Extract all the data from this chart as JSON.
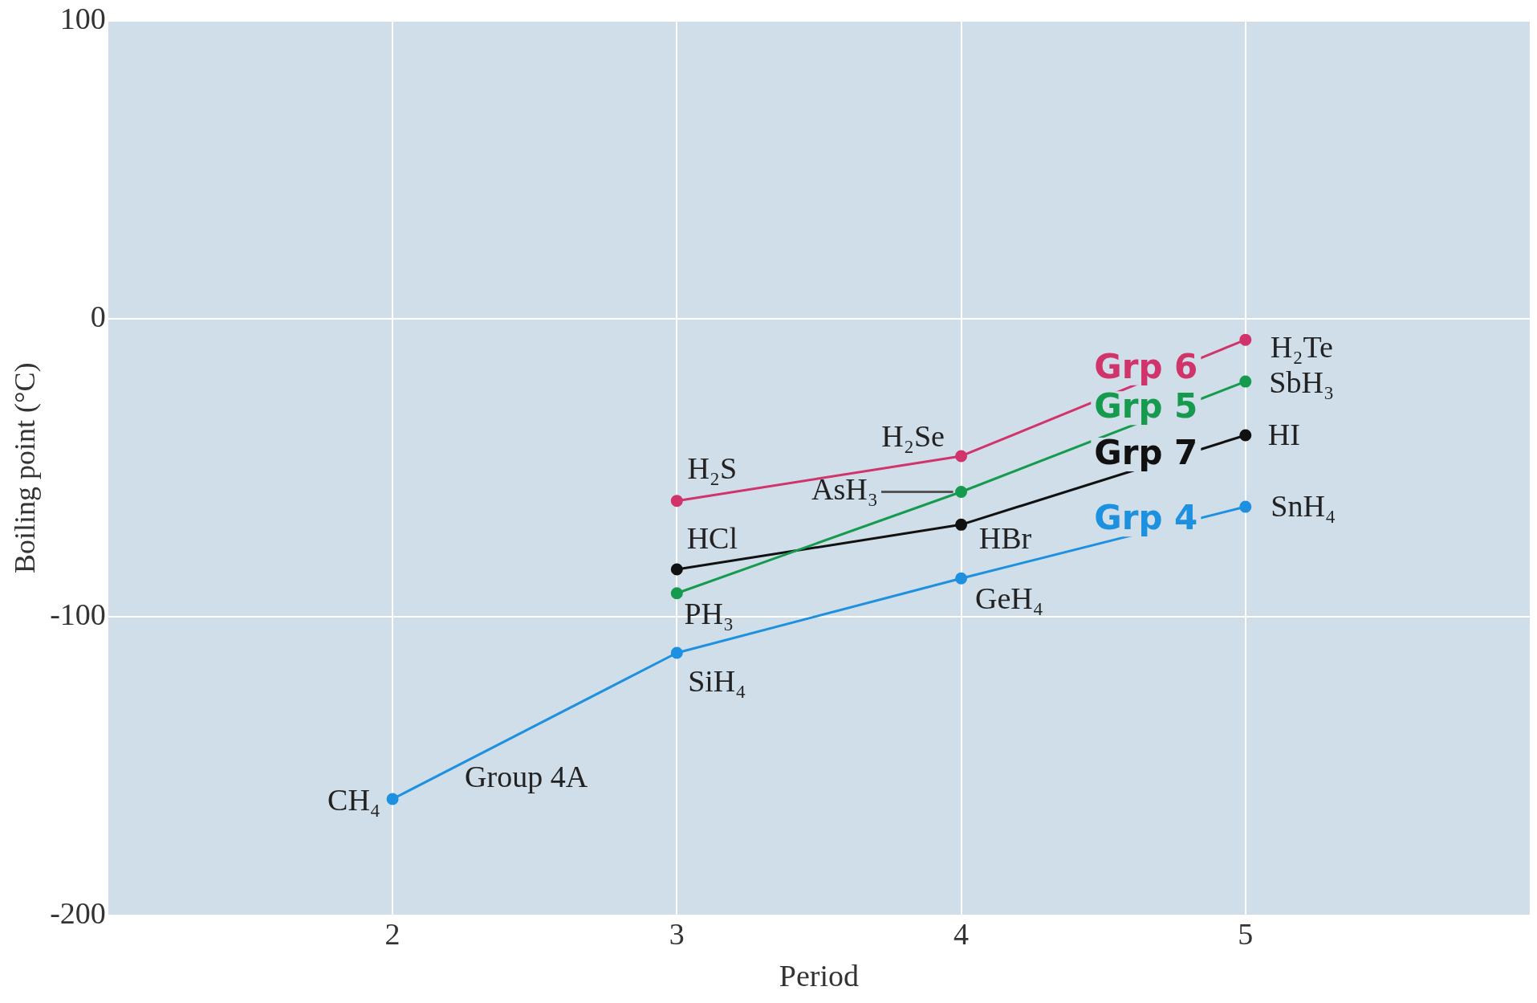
{
  "chart_data": {
    "type": "line",
    "xlabel": "Period",
    "ylabel": "Boiling point (°C)",
    "xlim": [
      1,
      6
    ],
    "xticks": [
      2,
      3,
      4,
      5
    ],
    "ylim": [
      -200,
      100
    ],
    "yticks": [
      -200,
      -100,
      0,
      100
    ],
    "grid": true,
    "legend": false,
    "marker": "circle",
    "line_style": "solid",
    "series": [
      {
        "name": "Grp 6",
        "color": "#d0346a",
        "x": [
          3,
          4,
          5
        ],
        "values": [
          -61,
          -46,
          -7
        ]
      },
      {
        "name": "Grp 5",
        "color": "#159a4e",
        "x": [
          3,
          4,
          5
        ],
        "values": [
          -92,
          -58,
          -21
        ]
      },
      {
        "name": "Grp 7",
        "color": "#111111",
        "x": [
          3,
          4,
          5
        ],
        "values": [
          -84,
          -69,
          -39
        ]
      },
      {
        "name": "Grp 4",
        "color": "#1e90e0",
        "x": [
          2,
          3,
          4,
          5
        ],
        "values": [
          -161,
          -112,
          -87,
          -63
        ]
      }
    ],
    "annotations": [
      {
        "text": "H₂Te",
        "x": 5,
        "y": -7
      },
      {
        "text": "SbH₃",
        "x": 5,
        "y": -21
      },
      {
        "text": "HI",
        "x": 5,
        "y": -39
      },
      {
        "text": "SnH₄",
        "x": 5,
        "y": -63
      },
      {
        "text": "H₂Se",
        "x": 4,
        "y": -46
      },
      {
        "text": "AsH₃",
        "x": 4,
        "y": -58
      },
      {
        "text": "H₂S",
        "x": 3,
        "y": -61
      },
      {
        "text": "HCl",
        "x": 3,
        "y": -84
      },
      {
        "text": "PH₃",
        "x": 3,
        "y": -92
      },
      {
        "text": "SiH₄",
        "x": 3,
        "y": -112
      },
      {
        "text": "GeH₄",
        "x": 4,
        "y": -87
      },
      {
        "text": "HBr",
        "x": 4,
        "y": -69
      },
      {
        "text": "CH₄",
        "x": 2,
        "y": -161
      },
      {
        "text": "Group 4A",
        "x": 2.47,
        "y": -138
      }
    ]
  }
}
